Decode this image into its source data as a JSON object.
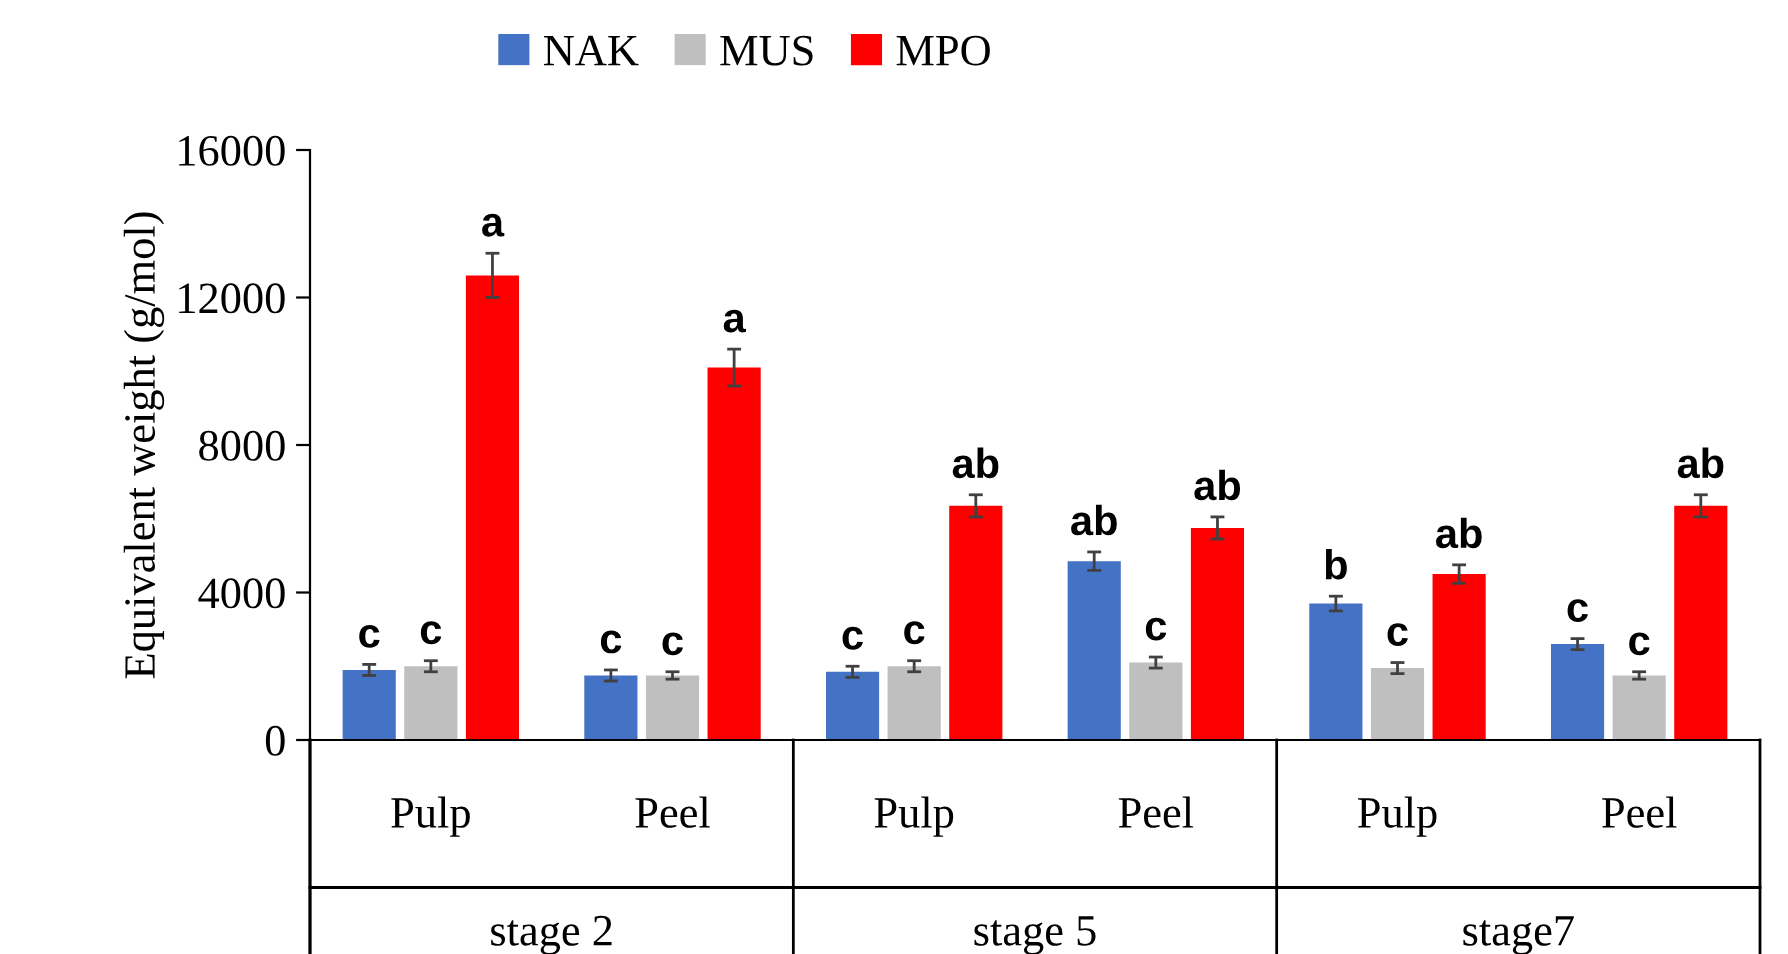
{
  "chart_data": {
    "type": "bar",
    "ylabel": "Equivalent weight (g/mol)",
    "categories": [
      "Pulp",
      "Peel",
      "Pulp",
      "Peel",
      "Pulp",
      "Peel"
    ],
    "annotations": [
      "stage 2",
      "stage 5",
      "stage7"
    ],
    "series": [
      {
        "name": "NAK",
        "color": "#4472c4",
        "values": [
          1900,
          1750,
          1850,
          4850,
          3700,
          2600
        ],
        "errors": [
          150,
          150,
          150,
          250,
          200,
          150
        ],
        "value_labels": [
          "c",
          "c",
          "c",
          "ab",
          "b",
          "c"
        ]
      },
      {
        "name": "MUS",
        "color": "#bfbfbf",
        "values": [
          2000,
          1750,
          2000,
          2100,
          1950,
          1750
        ],
        "errors": [
          150,
          100,
          150,
          150,
          150,
          100
        ],
        "value_labels": [
          "c",
          "c",
          "c",
          "c",
          "c",
          "c"
        ]
      },
      {
        "name": "MPO",
        "color": "#ff0000",
        "values": [
          12600,
          10100,
          6350,
          5750,
          4500,
          6350
        ],
        "errors": [
          600,
          500,
          300,
          300,
          250,
          300
        ],
        "value_labels": [
          "a",
          "a",
          "ab",
          "ab",
          "ab",
          "ab"
        ]
      }
    ],
    "ylim": [
      0,
      16000
    ],
    "yticks": [
      0,
      4000,
      8000,
      12000,
      16000
    ],
    "grid": false,
    "legend": "top"
  }
}
